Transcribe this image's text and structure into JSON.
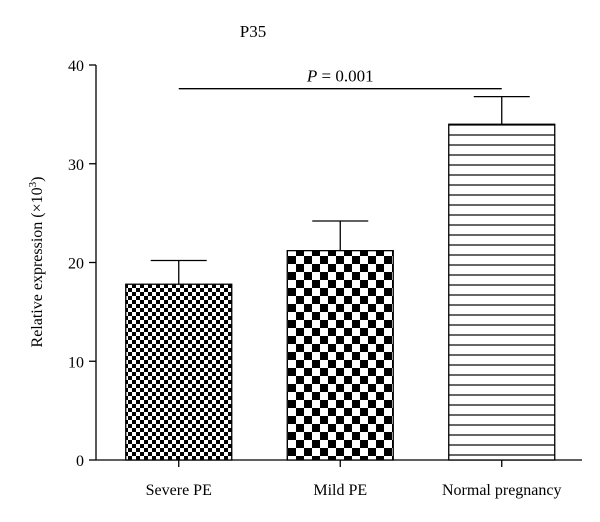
{
  "chart_data": {
    "type": "bar",
    "title": "P35",
    "xlabel": "",
    "ylabel_main": "Relative expression (",
    "ylabel_times": "×10",
    "ylabel_sup": "3",
    "ylabel_close": ")",
    "ylim": [
      0,
      40
    ],
    "yticks": [
      "0",
      "10",
      "20",
      "30",
      "40"
    ],
    "categories": [
      "Severe PE",
      "Mild PE",
      "Normal pregnancy"
    ],
    "values": [
      17.8,
      21.2,
      34.0
    ],
    "errors": [
      2.4,
      3.0,
      2.8
    ],
    "patterns": [
      "fine-checker",
      "coarse-checker",
      "horizontal-lines"
    ],
    "annotation": {
      "p_label": "P",
      "p_text": " = 0.001",
      "from": "Severe PE",
      "to": "Normal pregnancy"
    },
    "grid": false,
    "legend": "none"
  }
}
